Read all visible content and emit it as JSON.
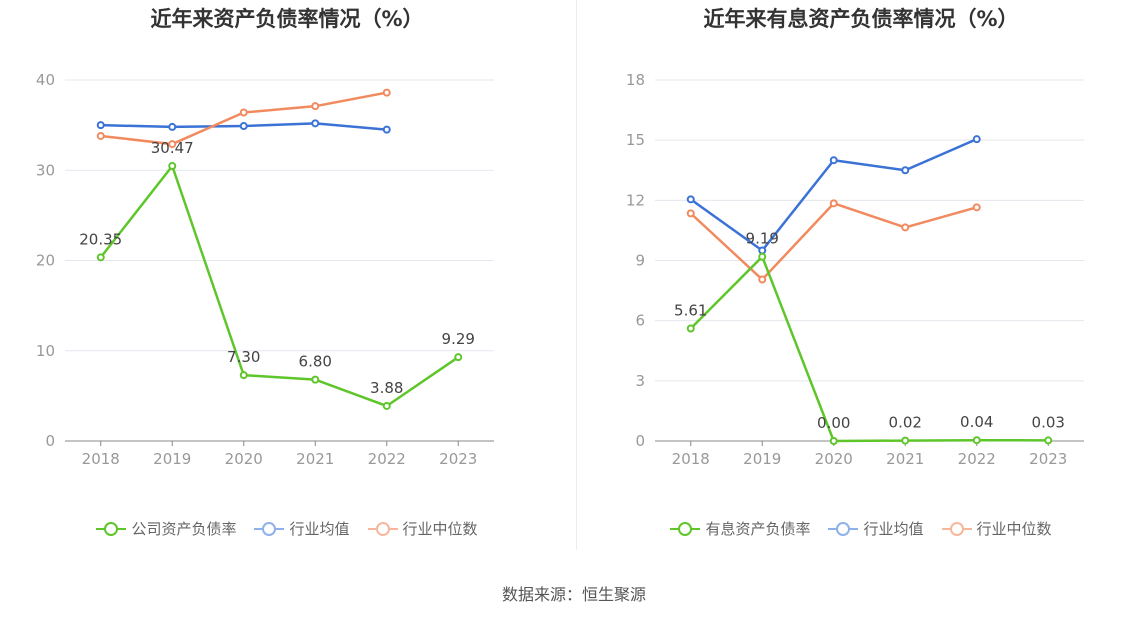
{
  "colors": {
    "company": "#5ec62b",
    "avg": "#3a72d6",
    "median": "#f28a5f",
    "grid": "#e4e7ee",
    "axis": "#888888",
    "text": "#999999"
  },
  "legend_labels": {
    "left": [
      "公司资产负债率",
      "行业均值",
      "行业中位数"
    ],
    "right": [
      "有息资产负债率",
      "行业均值",
      "行业中位数"
    ]
  },
  "source": "数据来源：恒生聚源",
  "chart_data": [
    {
      "type": "line",
      "title": "近年来资产负债率情况（%）",
      "categories": [
        "2018",
        "2019",
        "2020",
        "2021",
        "2022",
        "2023"
      ],
      "ylim": [
        0,
        40
      ],
      "yticks": [
        "0",
        "10",
        "20",
        "30",
        "40"
      ],
      "grid": true,
      "legend": "bottom",
      "series": [
        {
          "name": "公司资产负债率",
          "key": "company",
          "values": [
            20.35,
            30.47,
            7.3,
            6.8,
            3.88,
            9.29
          ],
          "labels": [
            "20.35",
            "30.47",
            "7.30",
            "6.80",
            "3.88",
            "9.29"
          ]
        },
        {
          "name": "行业均值",
          "key": "avg",
          "values": [
            35.0,
            34.8,
            34.9,
            35.2,
            34.5,
            null
          ]
        },
        {
          "name": "行业中位数",
          "key": "median",
          "values": [
            33.8,
            32.9,
            36.4,
            37.1,
            38.6,
            null
          ]
        }
      ]
    },
    {
      "type": "line",
      "title": "近年来有息资产负债率情况（%）",
      "categories": [
        "2018",
        "2019",
        "2020",
        "2021",
        "2022",
        "2023"
      ],
      "ylim": [
        0,
        18
      ],
      "yticks": [
        "0",
        "3",
        "6",
        "9",
        "12",
        "15",
        "18"
      ],
      "grid": true,
      "legend": "bottom",
      "series": [
        {
          "name": "有息资产负债率",
          "key": "company",
          "values": [
            5.61,
            9.19,
            0.0,
            0.02,
            0.04,
            0.03
          ],
          "labels": [
            "5.61",
            "9.19",
            "0.00",
            "0.02",
            "0.04",
            "0.03"
          ]
        },
        {
          "name": "行业均值",
          "key": "avg",
          "values": [
            12.05,
            9.5,
            14.0,
            13.5,
            15.05,
            null
          ]
        },
        {
          "name": "行业中位数",
          "key": "median",
          "values": [
            11.35,
            8.05,
            11.85,
            10.65,
            11.65,
            null
          ]
        }
      ]
    }
  ]
}
